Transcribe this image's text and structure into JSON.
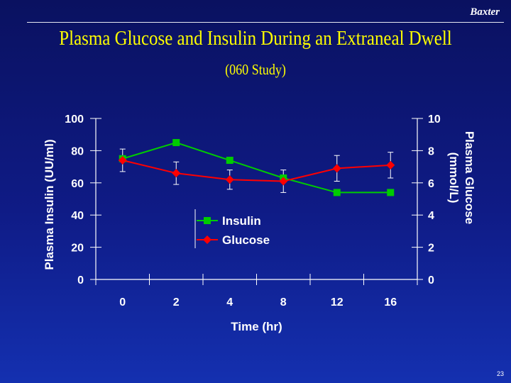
{
  "brand": "Baxter",
  "page_number": "23",
  "colors": {
    "title": "#ffff00",
    "insulin": "#00cc00",
    "glucose": "#ff0000",
    "axis": "#ffffff"
  },
  "chart_data": {
    "type": "line",
    "title": "Plasma Glucose and Insulin During an Extraneal Dwell",
    "subtitle": "(060 Study)",
    "xlabel": "Time (hr)",
    "ylabel": "Plasma Insulin (UU/ml)",
    "y2label": [
      "Plasma Glucose",
      "(mmol/L)"
    ],
    "categories": [
      "0",
      "2",
      "4",
      "8",
      "12",
      "16"
    ],
    "ylim": [
      0,
      100
    ],
    "y2lim": [
      0,
      10
    ],
    "yticks": [
      "0",
      "20",
      "40",
      "60",
      "80",
      "100"
    ],
    "y2ticks": [
      "0",
      "2",
      "4",
      "6",
      "8",
      "10"
    ],
    "legend_position": "center-left",
    "series": [
      {
        "name": "Insulin",
        "axis": "left",
        "marker": "square",
        "values": [
          75,
          85,
          74,
          63,
          54,
          54
        ]
      },
      {
        "name": "Glucose",
        "axis": "right",
        "marker": "diamond",
        "values": [
          7.4,
          6.6,
          6.2,
          6.1,
          6.9,
          7.1
        ],
        "error": [
          0.7,
          0.7,
          0.6,
          0.7,
          0.8,
          0.8
        ]
      }
    ]
  }
}
